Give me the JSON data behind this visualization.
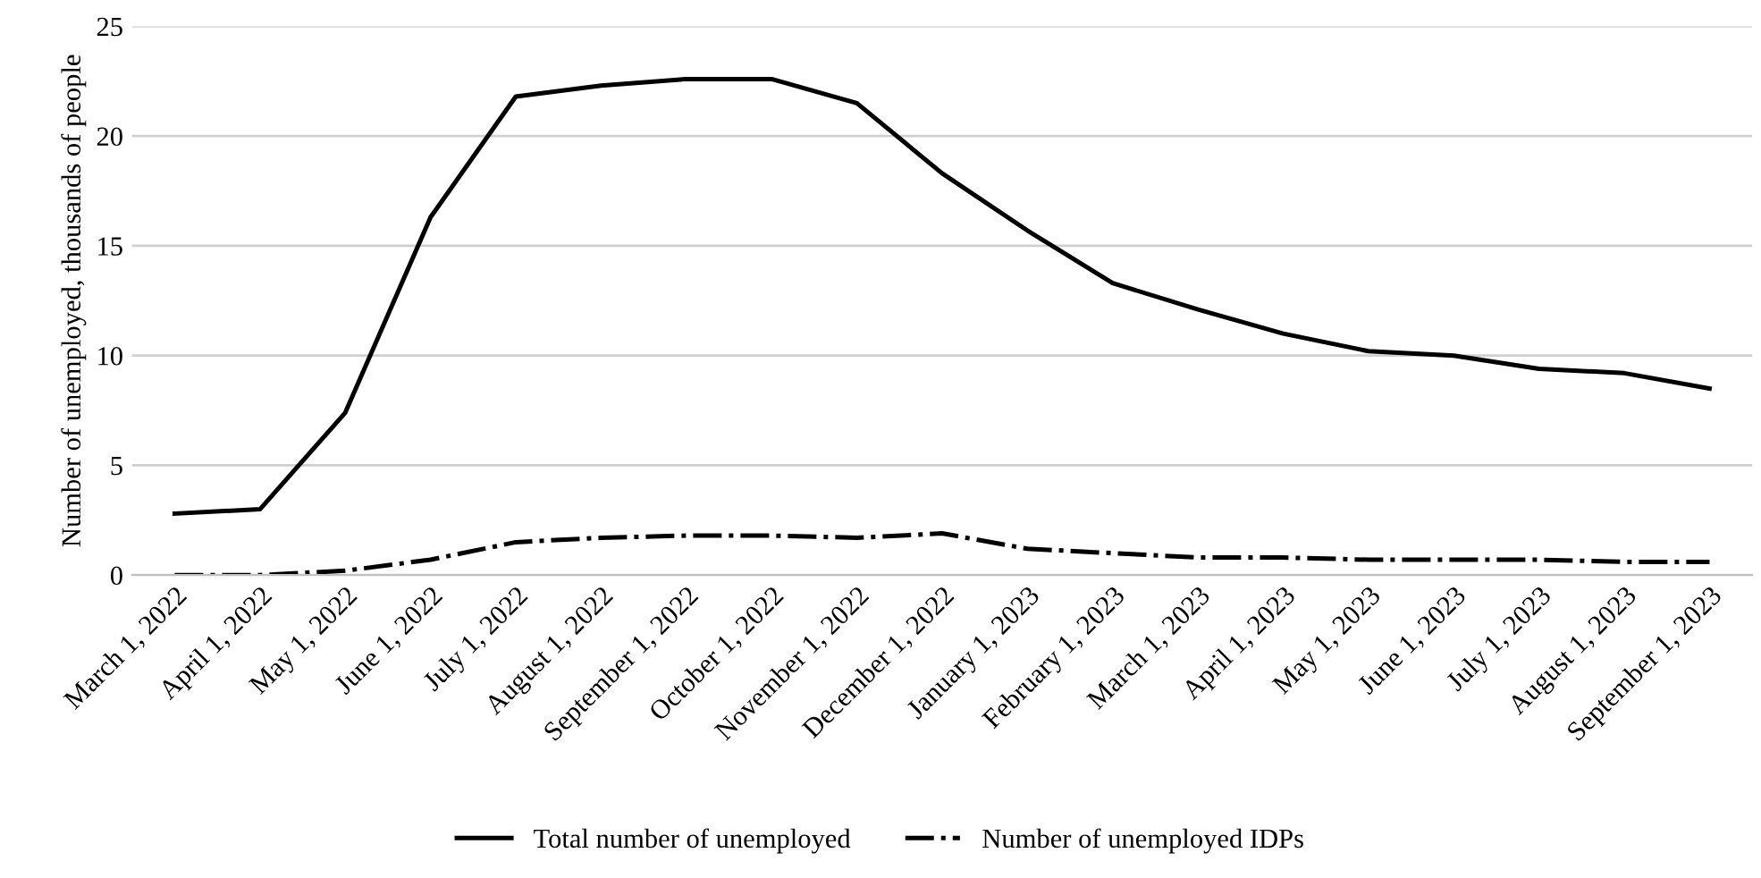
{
  "chart_data": {
    "type": "line",
    "ylabel": "Number of unemployed, thousands of people",
    "categories": [
      "March 1, 2022",
      "April 1, 2022",
      "May 1, 2022",
      "June 1, 2022",
      "July 1, 2022",
      "August 1, 2022",
      "September 1, 2022",
      "October 1, 2022",
      "November 1, 2022",
      "December 1, 2022",
      "January 1, 2023",
      "February 1, 2023",
      "March 1, 2023",
      "April 1, 2023",
      "May 1, 2023",
      "June 1, 2023",
      "July 1, 2023",
      "August 1, 2023",
      "September 1, 2023"
    ],
    "series": [
      {
        "name": "Total number of unemployed",
        "color": "#000000",
        "line_style": "solid",
        "values": [
          2.8,
          3.0,
          7.4,
          16.3,
          21.8,
          22.3,
          22.6,
          22.6,
          21.5,
          18.3,
          15.7,
          13.3,
          12.1,
          11.0,
          10.2,
          10.0,
          9.4,
          9.2,
          8.5
        ]
      },
      {
        "name": "Number of unemployed IDPs",
        "color": "#000000",
        "line_style": "dashdot",
        "values": [
          0.0,
          0.0,
          0.2,
          0.7,
          1.5,
          1.7,
          1.8,
          1.8,
          1.7,
          1.9,
          1.2,
          1.0,
          0.8,
          0.8,
          0.7,
          0.7,
          0.7,
          0.6,
          0.6
        ]
      }
    ],
    "ylim": [
      0,
      25
    ],
    "yticks": [
      0,
      5,
      10,
      15,
      20,
      25
    ],
    "grid": "y",
    "legend": "bottom",
    "marker": "none"
  }
}
